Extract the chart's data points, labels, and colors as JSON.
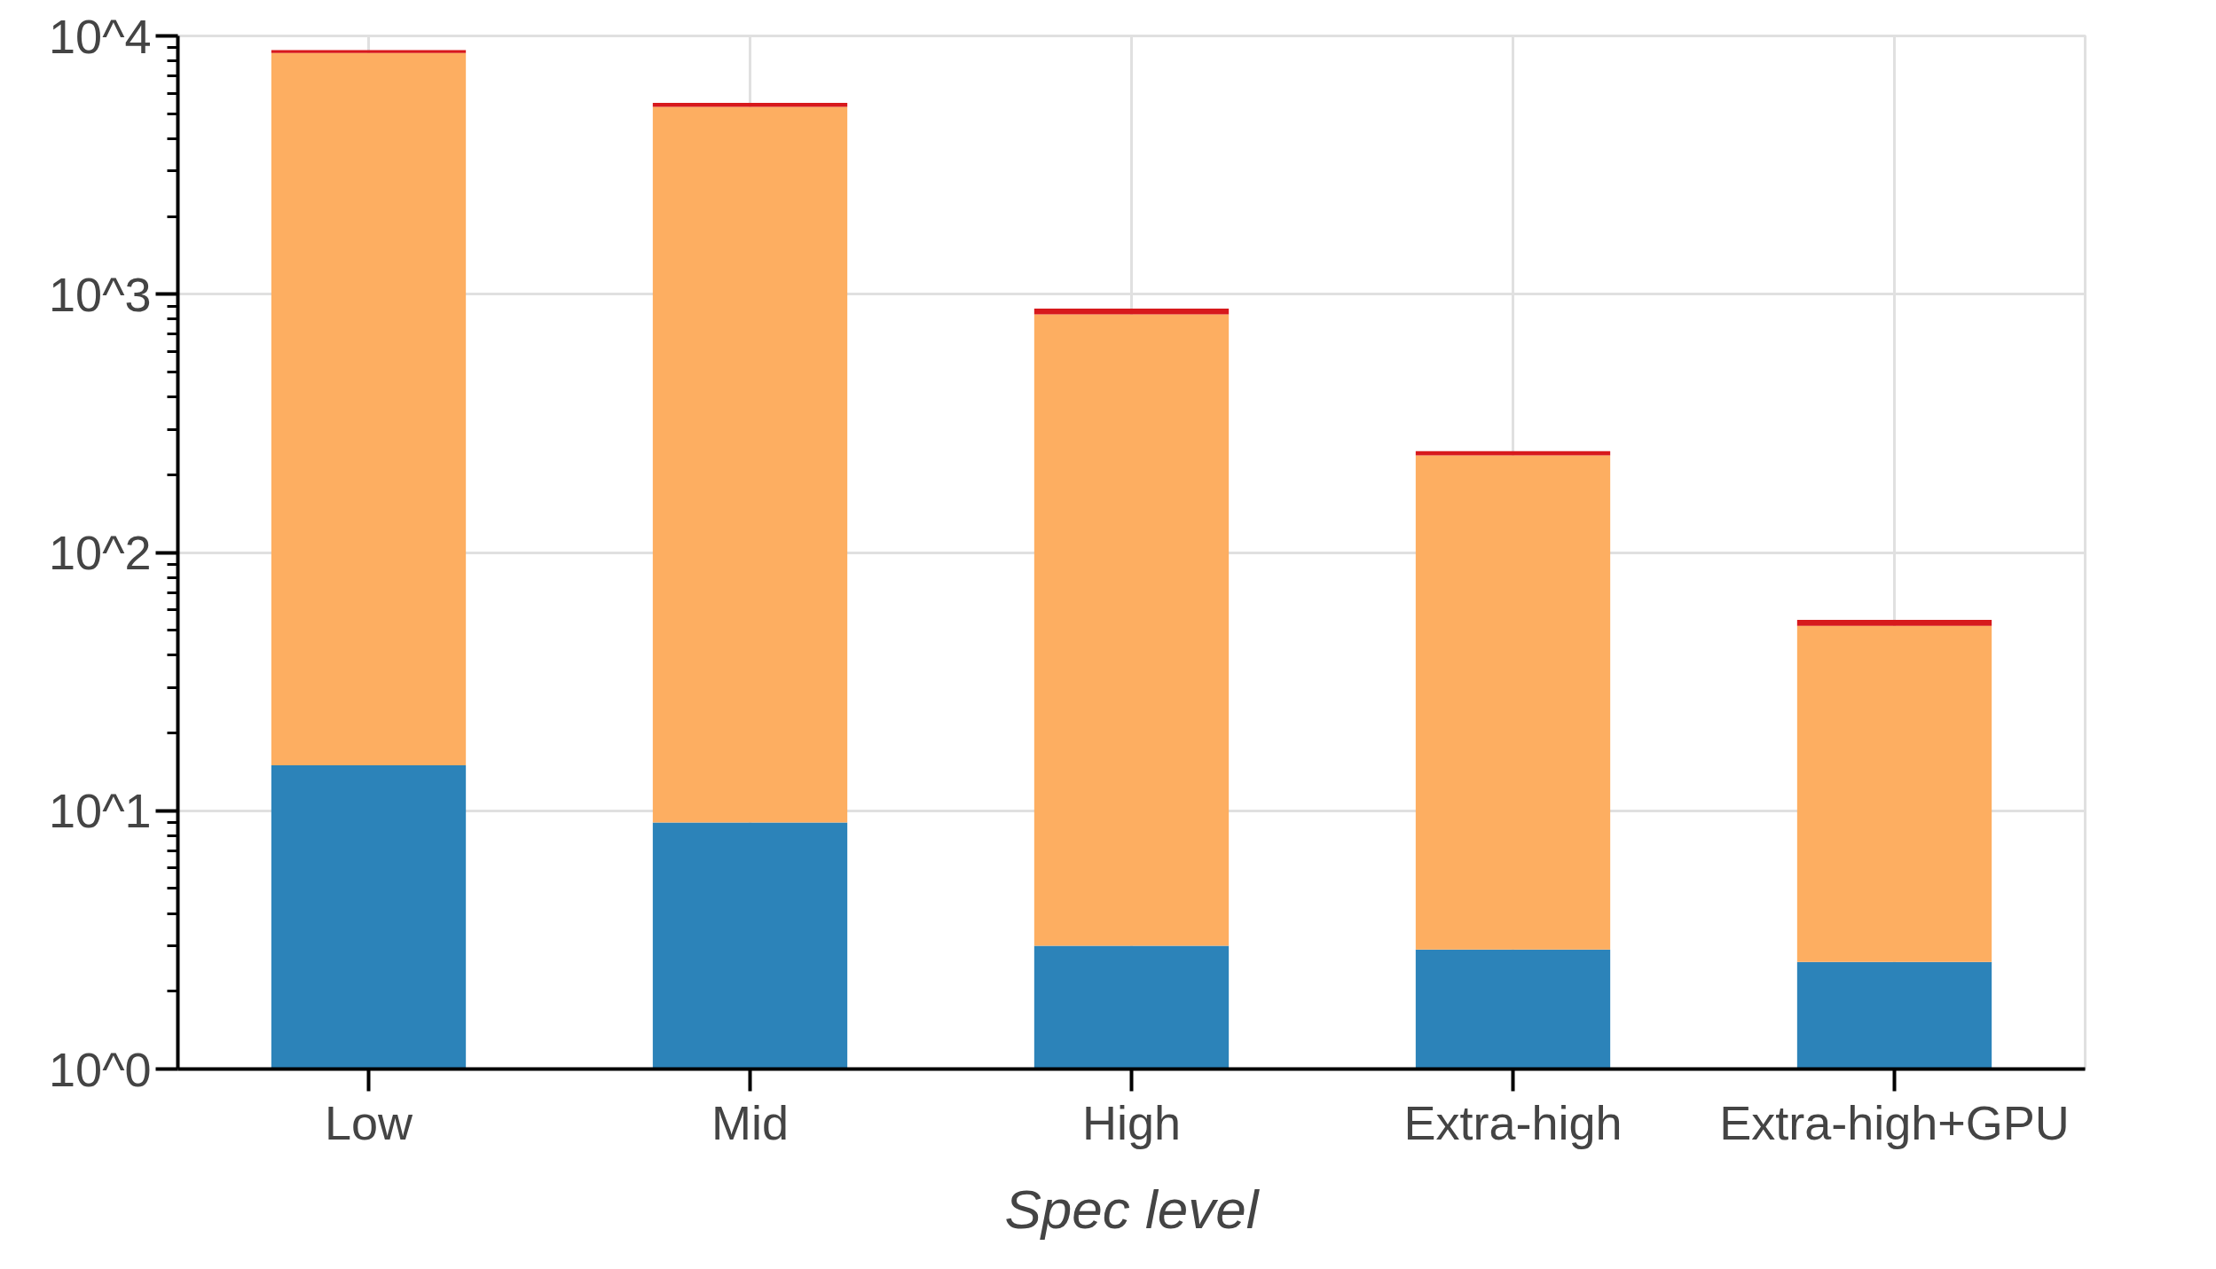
{
  "chart_data": {
    "type": "bar",
    "stacked": true,
    "xlabel": "Spec level",
    "categories": [
      "Low",
      "Mid",
      "High",
      "Extra-high",
      "Extra-high+GPU"
    ],
    "series": [
      {
        "color": "#2c83b9",
        "values": [
          15,
          9,
          3,
          2.9,
          2.6
        ]
      },
      {
        "color": "#fdae61",
        "values": [
          8575,
          5300,
          832,
          235,
          49.4
        ]
      },
      {
        "color": "#d7191c",
        "values": [
          220,
          200,
          44,
          9,
          2.8
        ]
      }
    ],
    "log": "y",
    "ylim": [
      1,
      10000
    ],
    "yticks": [
      {
        "value": 1,
        "label": "10^0"
      },
      {
        "value": 10,
        "label": "10^1"
      },
      {
        "value": 100,
        "label": "10^2"
      },
      {
        "value": 1000,
        "label": "10^3"
      },
      {
        "value": 10000,
        "label": "10^4"
      }
    ],
    "grid": true
  }
}
